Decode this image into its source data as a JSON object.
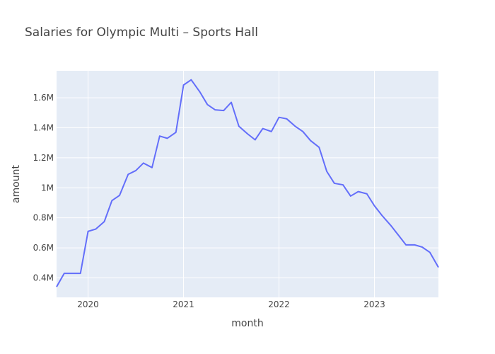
{
  "chart_data": {
    "type": "line",
    "title": "Salaries for Olympic Multi – Sports Hall",
    "xlabel": "month",
    "ylabel": "amount",
    "x_ticks": [
      {
        "label": "2020",
        "value": 2020.0
      },
      {
        "label": "2021",
        "value": 2021.0
      },
      {
        "label": "2022",
        "value": 2022.0
      },
      {
        "label": "2023",
        "value": 2023.0
      }
    ],
    "y_ticks": [
      {
        "label": "0.4M",
        "value": 400000
      },
      {
        "label": "0.6M",
        "value": 600000
      },
      {
        "label": "0.8M",
        "value": 800000
      },
      {
        "label": "1M",
        "value": 1000000
      },
      {
        "label": "1.2M",
        "value": 1200000
      },
      {
        "label": "1.4M",
        "value": 1400000
      },
      {
        "label": "1.6M",
        "value": 1600000
      }
    ],
    "xlim": [
      2019.67,
      2023.67
    ],
    "ylim": [
      270000,
      1780000
    ],
    "colors": {
      "line": "#636efa",
      "plot_bg": "#e5ecf6",
      "grid": "#ffffff"
    },
    "series": [
      {
        "name": "amount",
        "x": [
          2019.67,
          2019.75,
          2019.83,
          2019.92,
          2020.0,
          2020.08,
          2020.17,
          2020.25,
          2020.33,
          2020.42,
          2020.5,
          2020.58,
          2020.67,
          2020.75,
          2020.83,
          2020.92,
          2021.0,
          2021.08,
          2021.17,
          2021.25,
          2021.33,
          2021.42,
          2021.5,
          2021.58,
          2021.67,
          2021.75,
          2021.83,
          2021.92,
          2022.0,
          2022.08,
          2022.17,
          2022.25,
          2022.33,
          2022.42,
          2022.5,
          2022.58,
          2022.67,
          2022.75,
          2022.83,
          2022.92,
          2023.0,
          2023.08,
          2023.17,
          2023.25,
          2023.33,
          2023.42,
          2023.5,
          2023.58,
          2023.67
        ],
        "y": [
          340000,
          430000,
          430000,
          430000,
          710000,
          725000,
          775000,
          915000,
          950000,
          1090000,
          1115000,
          1165000,
          1135000,
          1345000,
          1330000,
          1370000,
          1685000,
          1720000,
          1640000,
          1555000,
          1520000,
          1515000,
          1570000,
          1410000,
          1360000,
          1320000,
          1395000,
          1375000,
          1470000,
          1460000,
          1410000,
          1375000,
          1315000,
          1270000,
          1110000,
          1030000,
          1020000,
          945000,
          975000,
          960000,
          880000,
          815000,
          750000,
          685000,
          620000,
          620000,
          605000,
          570000,
          470000
        ]
      }
    ]
  }
}
